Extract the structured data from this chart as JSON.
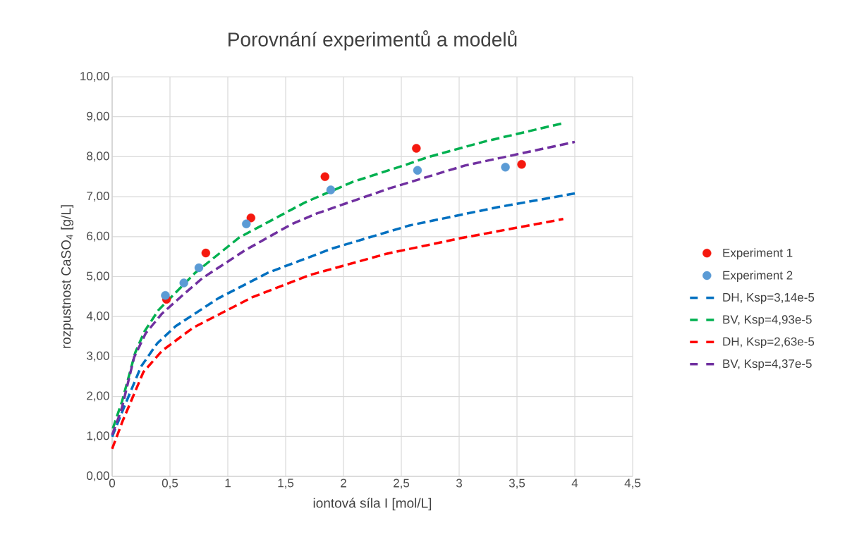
{
  "chart_data": {
    "type": "scatter",
    "title": "Porovnání experimentů a modelů",
    "xlabel": "iontová síla I [mol/L]",
    "ylabel": "rozpustnost CaSO$_{4}$ [g/L]",
    "xlim": [
      0,
      4.5
    ],
    "ylim": [
      0,
      10
    ],
    "xticks": [
      {
        "value": 0,
        "label": "0"
      },
      {
        "value": 0.5,
        "label": "0,5"
      },
      {
        "value": 1,
        "label": "1"
      },
      {
        "value": 1.5,
        "label": "1,5"
      },
      {
        "value": 2,
        "label": "2"
      },
      {
        "value": 2.5,
        "label": "2,5"
      },
      {
        "value": 3,
        "label": "3"
      },
      {
        "value": 3.5,
        "label": "3,5"
      },
      {
        "value": 4,
        "label": "4"
      },
      {
        "value": 4.5,
        "label": "4,5"
      }
    ],
    "yticks": [
      {
        "value": 0,
        "label": "0,00"
      },
      {
        "value": 1,
        "label": "1,00"
      },
      {
        "value": 2,
        "label": "2,00"
      },
      {
        "value": 3,
        "label": "3,00"
      },
      {
        "value": 4,
        "label": "4,00"
      },
      {
        "value": 5,
        "label": "5,00"
      },
      {
        "value": 6,
        "label": "6,00"
      },
      {
        "value": 7,
        "label": "7,00"
      },
      {
        "value": 8,
        "label": "8,00"
      },
      {
        "value": 9,
        "label": "9,00"
      },
      {
        "value": 10,
        "label": "10,00"
      }
    ],
    "grid": true,
    "legend": "right",
    "series": [
      {
        "name": "Experiment 1",
        "marker": "circle",
        "color": "#f5190f",
        "x": [
          0.47,
          0.81,
          1.2,
          1.84,
          2.63,
          3.54
        ],
        "values": [
          4.43,
          5.59,
          6.47,
          7.5,
          8.21,
          7.81
        ]
      },
      {
        "name": "Experiment 2",
        "marker": "circle",
        "color": "#5b9bd5",
        "x": [
          0.46,
          0.62,
          0.75,
          1.16,
          1.89,
          2.64,
          3.4
        ],
        "values": [
          4.53,
          4.84,
          5.22,
          6.32,
          7.17,
          7.66,
          7.74
        ]
      },
      {
        "name": "DH, Ksp=3,14e-5",
        "type": "line",
        "line_style": "dashed",
        "marker": "none",
        "color": "#0070c0",
        "x": [
          0,
          0.09,
          0.25,
          0.39,
          0.55,
          0.92,
          1.35,
          1.91,
          2.57,
          3.34,
          4.0
        ],
        "values": [
          0.99,
          1.64,
          2.75,
          3.33,
          3.76,
          4.46,
          5.1,
          5.71,
          6.28,
          6.74,
          7.08
        ]
      },
      {
        "name": "BV, Ksp=4,93e-5",
        "type": "line",
        "line_style": "dashed",
        "marker": "none",
        "color": "#00b050",
        "x": [
          0.006,
          0.085,
          0.2,
          0.28,
          0.4,
          0.72,
          1.1,
          1.67,
          2.08,
          2.52,
          2.73,
          3.22,
          3.9
        ],
        "values": [
          1.2,
          1.87,
          3.1,
          3.63,
          4.16,
          5.1,
          5.98,
          6.86,
          7.37,
          7.78,
          7.99,
          8.38,
          8.84
        ]
      },
      {
        "name": "DH, Ksp=2,63e-5",
        "type": "line",
        "line_style": "dashed",
        "marker": "none",
        "color": "#ff0000",
        "x": [
          0,
          0.09,
          0.27,
          0.43,
          0.7,
          1.21,
          1.71,
          2.37,
          3.01,
          3.9
        ],
        "values": [
          0.69,
          1.38,
          2.61,
          3.14,
          3.72,
          4.48,
          5.04,
          5.57,
          5.96,
          6.44
        ]
      },
      {
        "name": "BV, Ksp=4,37e-5",
        "type": "line",
        "line_style": "dashed",
        "marker": "none",
        "color": "#7030a0",
        "x": [
          0,
          0.08,
          0.19,
          0.29,
          0.43,
          0.6,
          0.78,
          1.15,
          1.55,
          1.77,
          2.4,
          3.05,
          4.0
        ],
        "values": [
          1.04,
          1.66,
          2.98,
          3.58,
          4.07,
          4.51,
          4.96,
          5.66,
          6.31,
          6.58,
          7.21,
          7.78,
          8.37
        ]
      }
    ]
  }
}
